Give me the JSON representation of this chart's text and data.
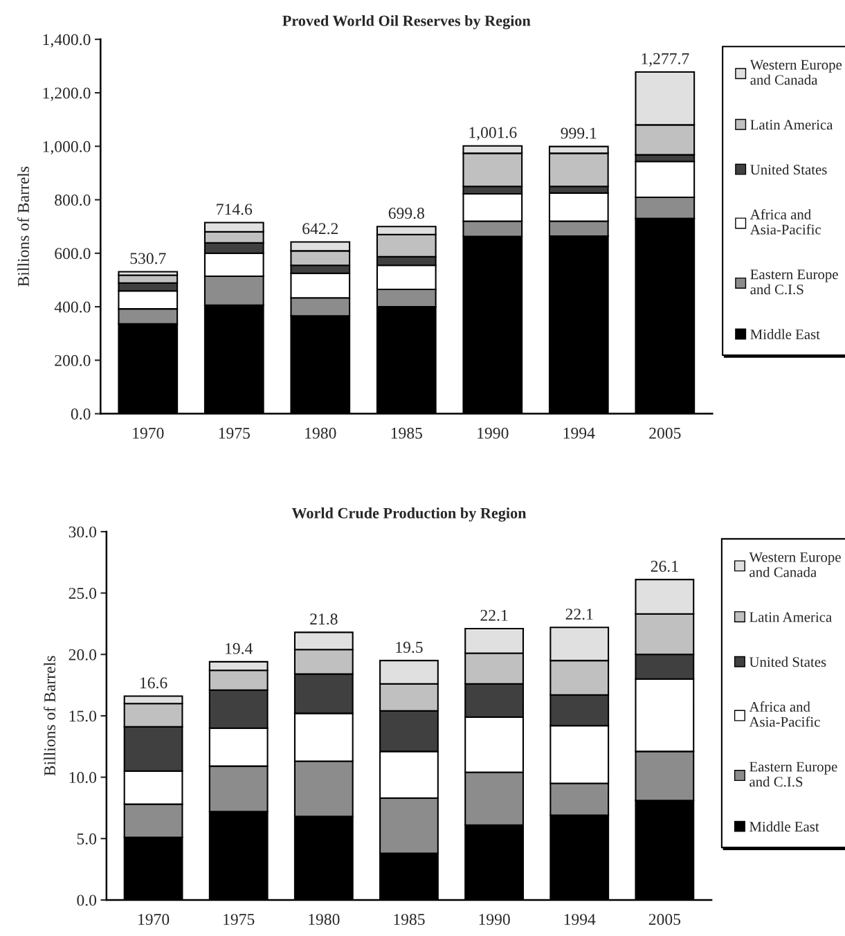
{
  "chart_data": [
    {
      "type": "bar",
      "title": "Proved World Oil Reserves by Region",
      "ylabel": "Billions of Barrels",
      "stacked": true,
      "legend": "right",
      "grid": false,
      "categories": [
        "1970",
        "1975",
        "1980",
        "1985",
        "1990",
        "1994",
        "2005"
      ],
      "series": [
        {
          "name": "Middle East",
          "color": "#000000",
          "values": [
            336,
            406,
            366,
            400,
            663,
            664,
            730
          ]
        },
        {
          "name": "Eastern Europe\nand C.I.S",
          "color": "#8c8c8c",
          "values": [
            56,
            108,
            67,
            65,
            57,
            56,
            79
          ]
        },
        {
          "name": "Africa and\nAsia-Pacific",
          "color": "#ffffff",
          "values": [
            67,
            86,
            92,
            90,
            102,
            105,
            134
          ]
        },
        {
          "name": "United States",
          "color": "#404040",
          "values": [
            30,
            39,
            30,
            32,
            28,
            25,
            25
          ]
        },
        {
          "name": "Latin America",
          "color": "#c0c0c0",
          "values": [
            29,
            41,
            54,
            83,
            124,
            124,
            112
          ]
        },
        {
          "name": "Western Europe\nand Canada",
          "color": "#e0e0e0",
          "values": [
            12.7,
            34.6,
            33.2,
            29.8,
            27.6,
            25.1,
            197.7
          ]
        }
      ],
      "totals": [
        "530.7",
        "714.6",
        "642.2",
        "699.8",
        "1,001.6",
        "999.1",
        "1,277.7"
      ],
      "ylim": [
        0,
        1400
      ],
      "yticks": [
        {
          "value": 0,
          "label": "0.0"
        },
        {
          "value": 200,
          "label": "200.0"
        },
        {
          "value": 400,
          "label": "400.0"
        },
        {
          "value": 600,
          "label": "600.0"
        },
        {
          "value": 800,
          "label": "800.0"
        },
        {
          "value": 1000,
          "label": "1,000.0"
        },
        {
          "value": 1200,
          "label": "1,200.0"
        },
        {
          "value": 1400,
          "label": "1,400.0"
        }
      ]
    },
    {
      "type": "bar",
      "title": "World Crude Production by Region",
      "ylabel": "Billions of Barrels",
      "stacked": true,
      "legend": "right",
      "grid": false,
      "categories": [
        "1970",
        "1975",
        "1980",
        "1985",
        "1990",
        "1994",
        "2005"
      ],
      "series": [
        {
          "name": "Middle East",
          "color": "#000000",
          "values": [
            5.1,
            7.2,
            6.8,
            3.8,
            6.1,
            6.9,
            8.1
          ]
        },
        {
          "name": "Eastern Europe\nand C.I.S",
          "color": "#8c8c8c",
          "values": [
            2.7,
            3.7,
            4.5,
            4.5,
            4.3,
            2.6,
            4.0
          ]
        },
        {
          "name": "Africa and\nAsia-Pacific",
          "color": "#ffffff",
          "values": [
            2.7,
            3.1,
            3.9,
            3.8,
            4.5,
            4.7,
            5.9
          ]
        },
        {
          "name": "United States",
          "color": "#404040",
          "values": [
            3.6,
            3.1,
            3.2,
            3.3,
            2.7,
            2.5,
            2.0
          ]
        },
        {
          "name": "Latin America",
          "color": "#c0c0c0",
          "values": [
            1.9,
            1.6,
            2.0,
            2.2,
            2.5,
            2.8,
            3.3
          ]
        },
        {
          "name": "Western Europe\nand Canada",
          "color": "#e0e0e0",
          "values": [
            0.6,
            0.7,
            1.4,
            1.9,
            2.0,
            2.7,
            2.8
          ]
        }
      ],
      "totals": [
        "16.6",
        "19.4",
        "21.8",
        "19.5",
        "22.1",
        "22.1",
        "26.1"
      ],
      "ylim": [
        0,
        30
      ],
      "yticks": [
        {
          "value": 0,
          "label": "0.0"
        },
        {
          "value": 5,
          "label": "5.0"
        },
        {
          "value": 10,
          "label": "10.0"
        },
        {
          "value": 15,
          "label": "15.0"
        },
        {
          "value": 20,
          "label": "20.0"
        },
        {
          "value": 25,
          "label": "25.0"
        },
        {
          "value": 30,
          "label": "30.0"
        }
      ]
    }
  ]
}
